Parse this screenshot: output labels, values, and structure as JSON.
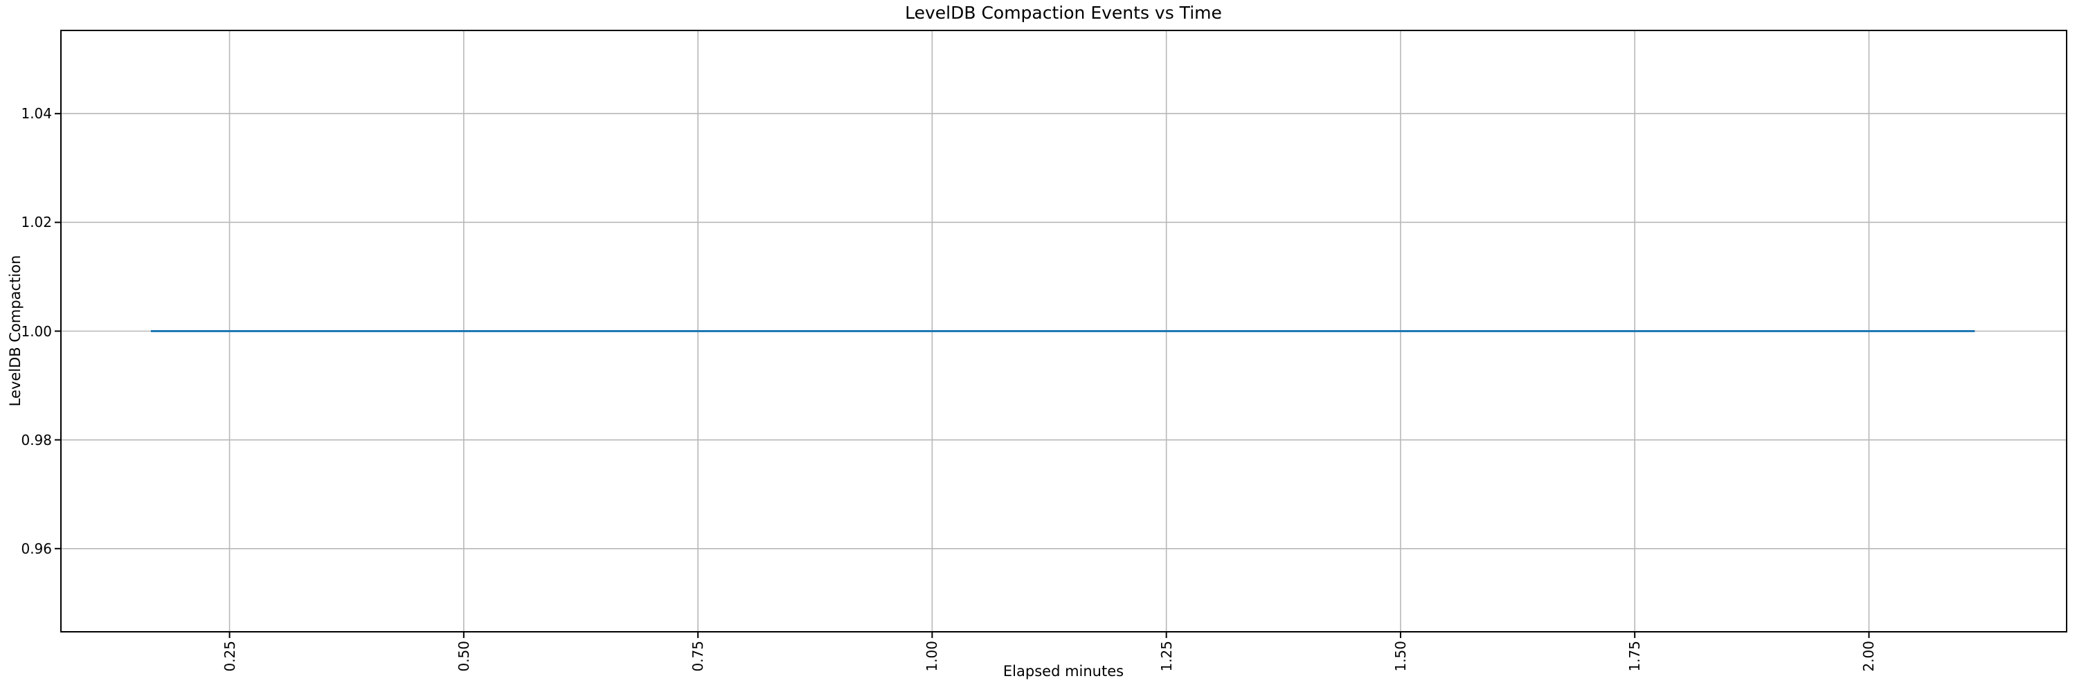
{
  "figure": {
    "title": "LevelDB Compaction Events vs Time",
    "xlabel": "Elapsed minutes",
    "ylabel": "LevelDB Compaction"
  },
  "colors": {
    "background": "#ffffff",
    "line": "#1f77b4",
    "grid": "#b8b8b8",
    "spine": "#000000",
    "tick": "#000000",
    "text": "#000000"
  },
  "chart_data": {
    "type": "line",
    "title": "LevelDB Compaction Events vs Time",
    "xlabel": "Elapsed minutes",
    "ylabel": "LevelDB Compaction",
    "xlim": [
      0.07,
      2.211
    ],
    "ylim": [
      0.9447,
      1.0553
    ],
    "x_ticks": [
      0.25,
      0.5,
      0.75,
      1.0,
      1.25,
      1.5,
      1.75,
      2.0
    ],
    "x_tick_labels": [
      "0.25",
      "0.50",
      "0.75",
      "1.00",
      "1.25",
      "1.50",
      "1.75",
      "2.00"
    ],
    "x_tick_rotation_deg": 90,
    "y_ticks": [
      0.96,
      0.98,
      1.0,
      1.02,
      1.04
    ],
    "y_tick_labels": [
      "0.96",
      "0.98",
      "1.00",
      "1.02",
      "1.04"
    ],
    "grid": true,
    "legend": false,
    "series": [
      {
        "name": "LevelDB Compaction",
        "color": "#1f77b4",
        "x": [
          0.166,
          2.113
        ],
        "y": [
          1.0,
          1.0
        ]
      }
    ]
  }
}
